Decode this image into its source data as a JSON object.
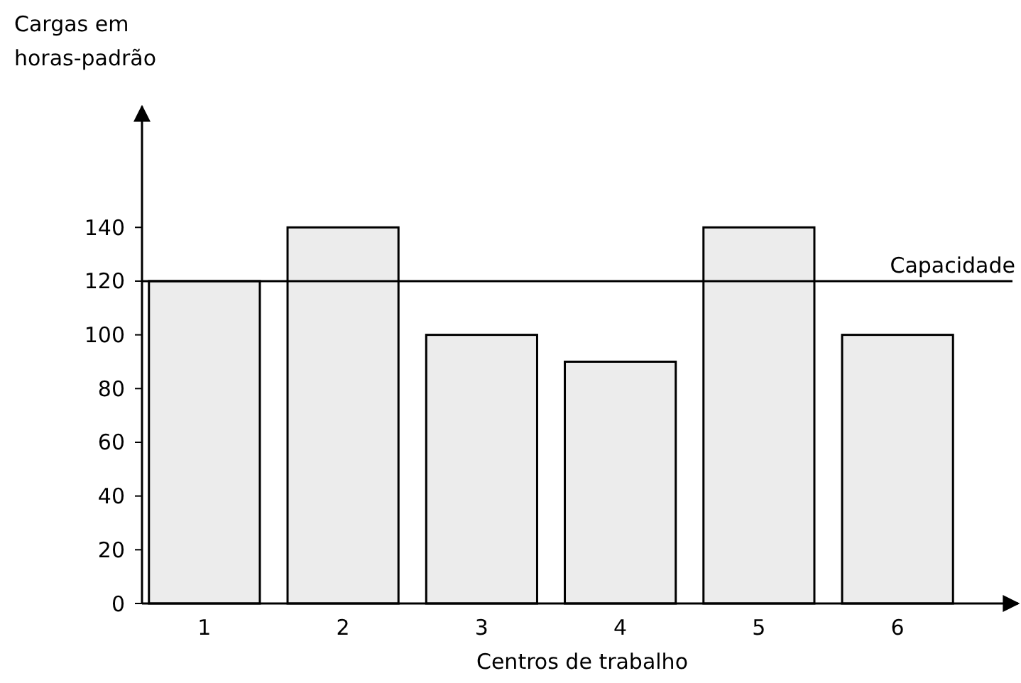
{
  "chart_data": {
    "type": "bar",
    "ylabel": "Cargas em\nhoras-padrão",
    "xlabel": "Centros de trabalho",
    "categories": [
      "1",
      "2",
      "3",
      "4",
      "5",
      "6"
    ],
    "values": [
      120,
      140,
      100,
      90,
      140,
      100
    ],
    "color": "#ececec",
    "ylim": [
      0,
      185
    ],
    "yticks": [
      0,
      20,
      40,
      60,
      80,
      100,
      120,
      140
    ],
    "grid": false,
    "ref_lines": [
      {
        "axis": "y",
        "value": 120,
        "label": "Capacidade",
        "color": "#000000"
      }
    ]
  }
}
